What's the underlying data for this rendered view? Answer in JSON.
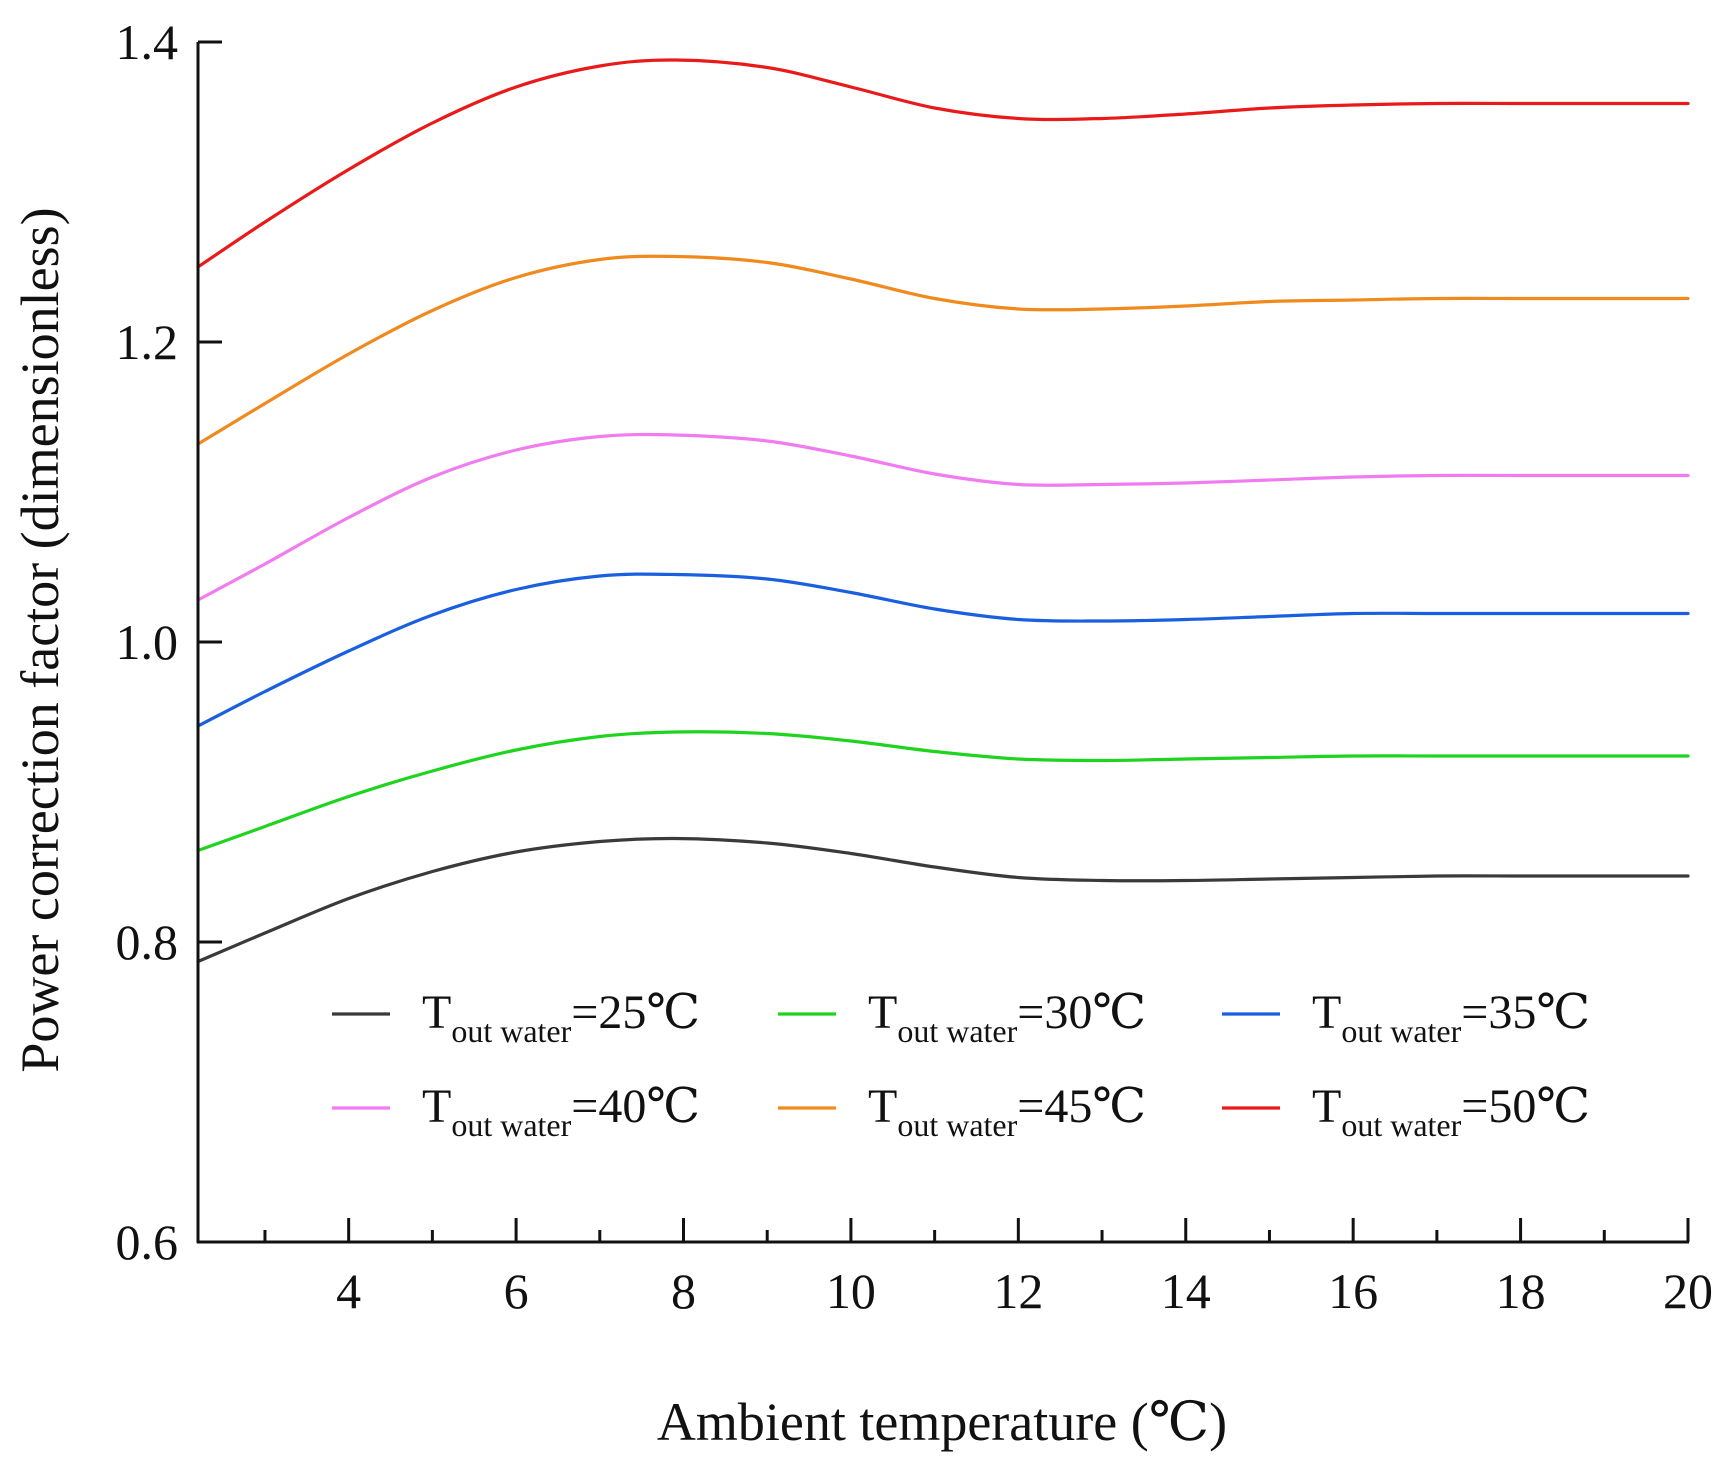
{
  "chart_data": {
    "type": "line",
    "title": "",
    "xlabel": "Ambient temperature (℃)",
    "ylabel": "Power correction factor (dimensionless)",
    "xlim": [
      2.2,
      20
    ],
    "ylim": [
      0.6,
      1.4
    ],
    "x_ticks": [
      4,
      6,
      8,
      10,
      12,
      14,
      16,
      18,
      20
    ],
    "x_minor_ticks": [
      3,
      5,
      7,
      9,
      11,
      13,
      15,
      17,
      19
    ],
    "y_ticks": [
      0.6,
      0.8,
      1.0,
      1.2,
      1.4
    ],
    "x_tick_labels": [
      "4",
      "6",
      "8",
      "10",
      "12",
      "14",
      "16",
      "18",
      "20"
    ],
    "y_tick_labels": [
      "0.6",
      "0.8",
      "1.0",
      "1.2",
      "1.4"
    ],
    "grid": false,
    "legend_position": "bottom-inside",
    "x": [
      2.2,
      3,
      4,
      5,
      6,
      7,
      7.9,
      9,
      10,
      11,
      12,
      13,
      14,
      15,
      16,
      17,
      18,
      19,
      20
    ],
    "series": [
      {
        "name_main": "T",
        "name_sub": "out water",
        "name_suffix": "=25℃",
        "color": "#3a3a3a",
        "values": [
          0.787,
          0.806,
          0.829,
          0.847,
          0.86,
          0.867,
          0.869,
          0.866,
          0.859,
          0.85,
          0.843,
          0.841,
          0.841,
          0.842,
          0.843,
          0.844,
          0.844,
          0.844,
          0.844
        ]
      },
      {
        "name_main": "T",
        "name_sub": "out water",
        "name_suffix": "=30℃",
        "color": "#1ed41e",
        "values": [
          0.861,
          0.877,
          0.897,
          0.914,
          0.928,
          0.937,
          0.94,
          0.939,
          0.934,
          0.927,
          0.922,
          0.921,
          0.922,
          0.923,
          0.924,
          0.924,
          0.924,
          0.924,
          0.924
        ]
      },
      {
        "name_main": "T",
        "name_sub": "out water",
        "name_suffix": "=35℃",
        "color": "#1a5fe0",
        "values": [
          0.944,
          0.967,
          0.994,
          1.018,
          1.035,
          1.044,
          1.045,
          1.042,
          1.033,
          1.022,
          1.015,
          1.014,
          1.015,
          1.017,
          1.019,
          1.019,
          1.019,
          1.019,
          1.019
        ]
      },
      {
        "name_main": "T",
        "name_sub": "out water",
        "name_suffix": "=40℃",
        "color": "#f07cf0",
        "values": [
          1.028,
          1.052,
          1.083,
          1.11,
          1.128,
          1.137,
          1.138,
          1.134,
          1.124,
          1.112,
          1.105,
          1.105,
          1.106,
          1.108,
          1.11,
          1.111,
          1.111,
          1.111,
          1.111
        ]
      },
      {
        "name_main": "T",
        "name_sub": "out water",
        "name_suffix": "=45℃",
        "color": "#f08a1e",
        "values": [
          1.132,
          1.159,
          1.192,
          1.221,
          1.243,
          1.255,
          1.257,
          1.253,
          1.242,
          1.229,
          1.222,
          1.222,
          1.224,
          1.227,
          1.228,
          1.229,
          1.229,
          1.229,
          1.229
        ]
      },
      {
        "name_main": "T",
        "name_sub": "out water",
        "name_suffix": "=50℃",
        "color": "#e81a1a",
        "values": [
          1.25,
          1.28,
          1.315,
          1.346,
          1.37,
          1.384,
          1.388,
          1.383,
          1.37,
          1.356,
          1.349,
          1.349,
          1.352,
          1.356,
          1.358,
          1.359,
          1.359,
          1.359,
          1.359
        ]
      }
    ]
  }
}
